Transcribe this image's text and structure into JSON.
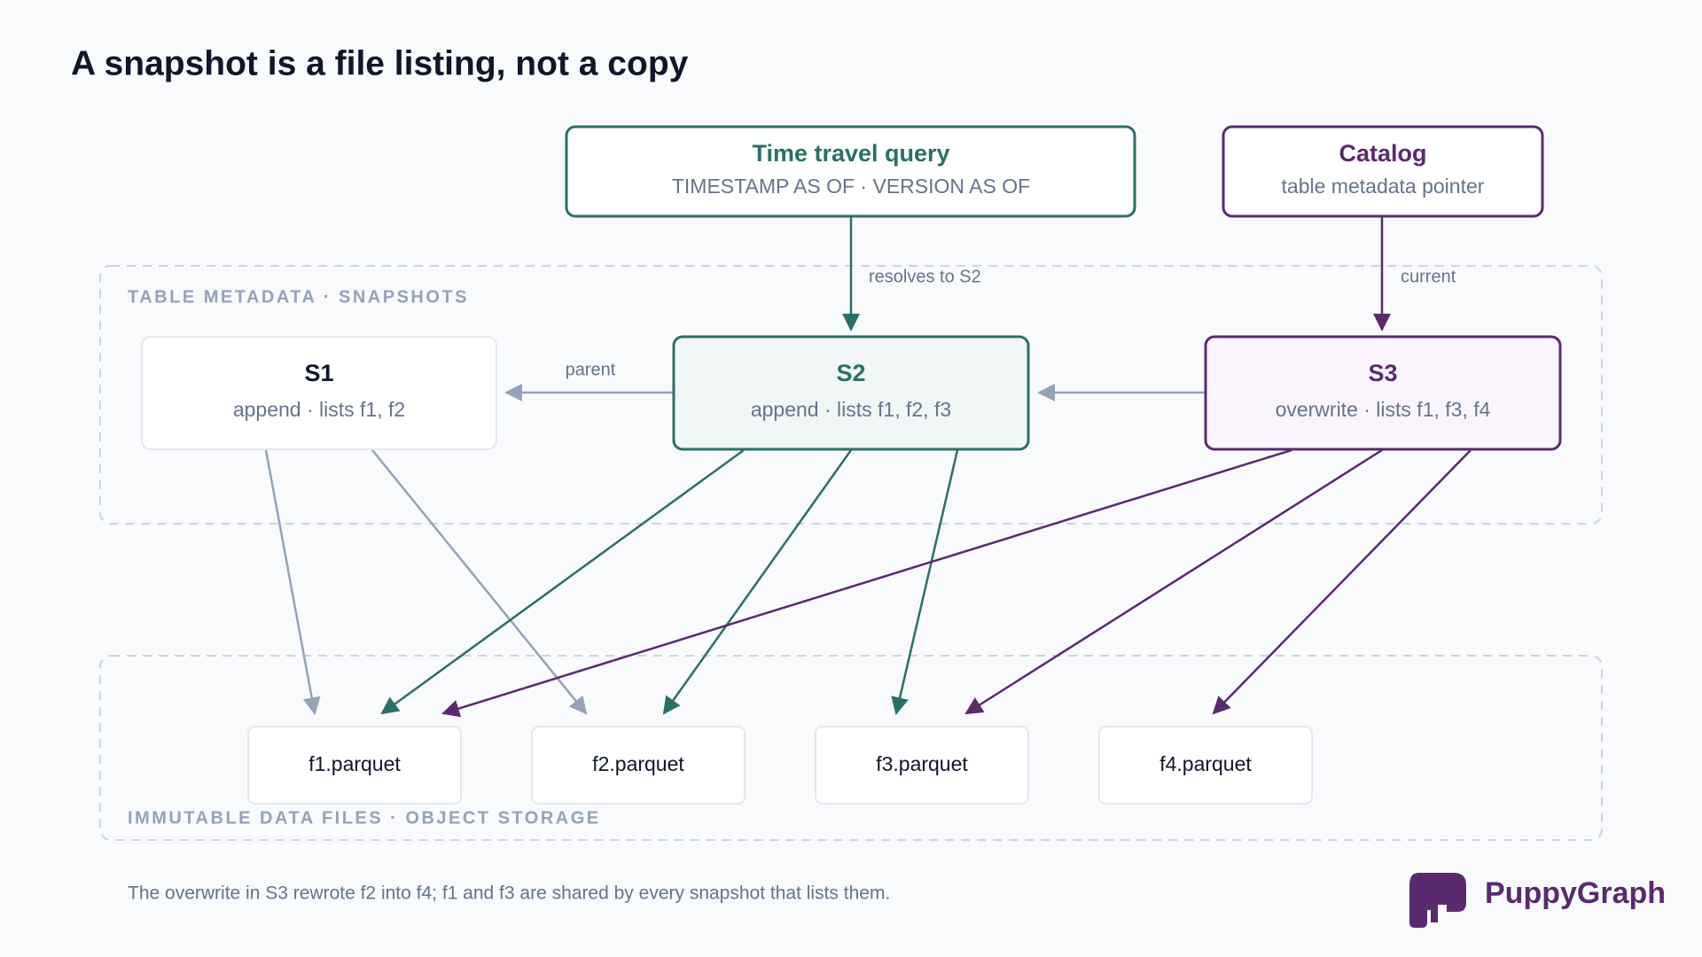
{
  "title": "A snapshot is a file listing, not a copy",
  "query": {
    "title": "Time travel query",
    "subtitle": "TIMESTAMP AS OF · VERSION AS OF"
  },
  "catalog": {
    "title": "Catalog",
    "subtitle": "table metadata pointer"
  },
  "edge_labels": {
    "resolves": "resolves to S2",
    "current": "current",
    "parent": "parent"
  },
  "sections": {
    "metadata": "TABLE METADATA · SNAPSHOTS",
    "files": "IMMUTABLE DATA FILES · OBJECT STORAGE"
  },
  "snapshots": [
    {
      "name": "S1",
      "detail": "append · lists f1, f2"
    },
    {
      "name": "S2",
      "detail": "append · lists f1, f2, f3"
    },
    {
      "name": "S3",
      "detail": "overwrite · lists f1, f3, f4"
    }
  ],
  "files": [
    "f1.parquet",
    "f2.parquet",
    "f3.parquet",
    "f4.parquet"
  ],
  "footer": "The overwrite in S3 rewrote f2 into f4; f1 and f3 are shared by every snapshot that lists them.",
  "brand": "PuppyGraph"
}
